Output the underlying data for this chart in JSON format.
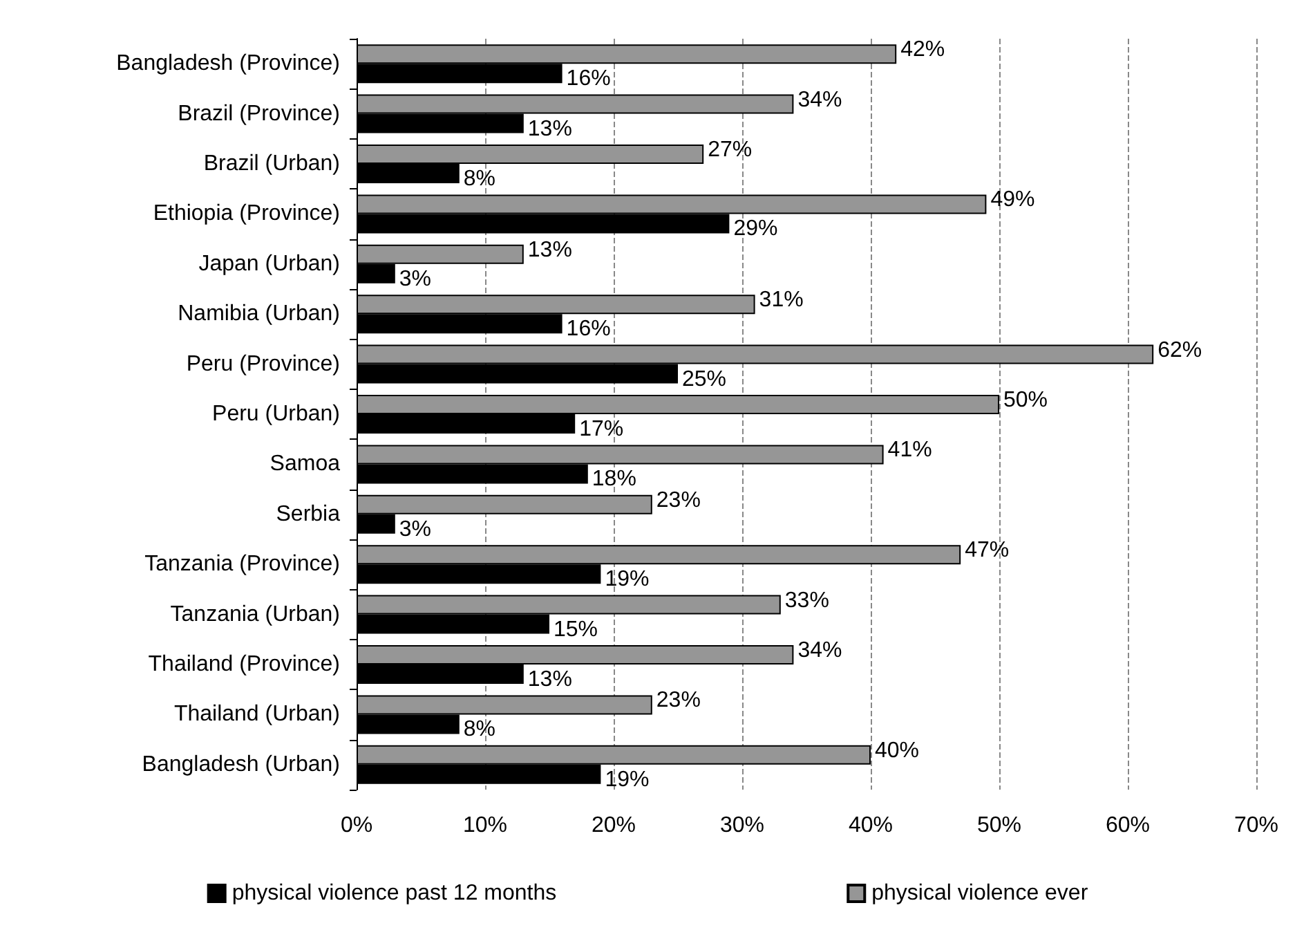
{
  "chart_data": {
    "type": "bar",
    "orientation": "horizontal",
    "categories": [
      "Bangladesh (Province)",
      "Brazil (Province)",
      "Brazil (Urban)",
      "Ethiopia (Province)",
      "Japan (Urban)",
      "Namibia (Urban)",
      "Peru (Province)",
      "Peru (Urban)",
      "Samoa",
      "Serbia",
      "Tanzania (Province)",
      "Tanzania (Urban)",
      "Thailand (Province)",
      "Thailand (Urban)",
      "Bangladesh (Urban)"
    ],
    "series": [
      {
        "name": "physical violence past 12 months",
        "color": "#000000",
        "values": [
          16,
          13,
          8,
          29,
          3,
          16,
          25,
          17,
          18,
          3,
          19,
          15,
          13,
          8,
          19
        ],
        "value_labels": [
          "16%",
          "13%",
          "8%",
          "29%",
          "3%",
          "16%",
          "25%",
          "17%",
          "18%",
          "3%",
          "19%",
          "15%",
          "13%",
          "8%",
          "19%"
        ]
      },
      {
        "name": "physical violence ever",
        "color": "#969696",
        "values": [
          42,
          34,
          27,
          49,
          13,
          31,
          62,
          50,
          41,
          23,
          47,
          33,
          34,
          23,
          40
        ],
        "value_labels": [
          "42%",
          "34%",
          "27%",
          "49%",
          "13%",
          "31%",
          "62%",
          "50%",
          "41%",
          "23%",
          "47%",
          "33%",
          "34%",
          "23%",
          "40%"
        ]
      }
    ],
    "xlim": [
      0,
      70
    ],
    "xticks": [
      {
        "value": 0,
        "label": "0%"
      },
      {
        "value": 10,
        "label": "10%"
      },
      {
        "value": 20,
        "label": "20%"
      },
      {
        "value": 30,
        "label": "30%"
      },
      {
        "value": 40,
        "label": "40%"
      },
      {
        "value": 50,
        "label": "50%"
      },
      {
        "value": 60,
        "label": "60%"
      },
      {
        "value": 70,
        "label": "70%"
      }
    ],
    "grid": "x",
    "legend": "bottom"
  }
}
